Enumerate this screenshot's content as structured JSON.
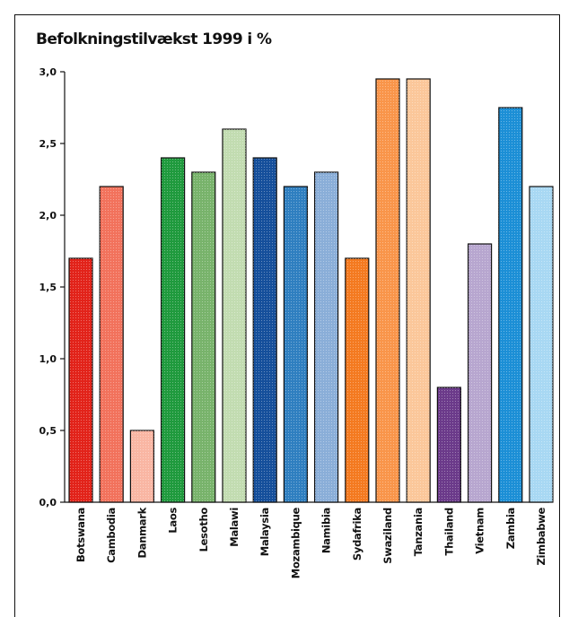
{
  "chart_data": {
    "type": "bar",
    "title": "Befolkningstilvækst 1999 i %",
    "xlabel": "",
    "ylabel": "",
    "ylim": [
      0,
      3.0
    ],
    "yticks": [
      "3,0",
      "2,5",
      "2,0",
      "1,5",
      "1,0",
      "0,5",
      "0,0"
    ],
    "ytick_values": [
      3.0,
      2.5,
      2.0,
      1.5,
      1.0,
      0.5,
      0.0
    ],
    "grid": false,
    "categories": [
      "Botswana",
      "Cambodia",
      "Danmark",
      "Laos",
      "Lesotho",
      "Malawi",
      "Malaysia",
      "Mozambique",
      "Namibia",
      "Sydafrika",
      "Swaziland",
      "Tanzania",
      "Thailand",
      "Vietnam",
      "Zambia",
      "Zimbabwe"
    ],
    "values": [
      1.7,
      2.2,
      0.5,
      2.4,
      2.3,
      2.6,
      2.4,
      2.2,
      2.3,
      1.7,
      2.95,
      2.95,
      0.8,
      1.8,
      2.75,
      2.2
    ],
    "colors": [
      "#e2231a",
      "#f2725c",
      "#f9b6a3",
      "#1f9a3d",
      "#78b36b",
      "#c2dcb1",
      "#154f9b",
      "#2f7fc0",
      "#8aaed8",
      "#f47a20",
      "#f9954a",
      "#fbc79a",
      "#6b3a8a",
      "#b7a6cf",
      "#1c8fd6",
      "#a8d8f3"
    ]
  }
}
